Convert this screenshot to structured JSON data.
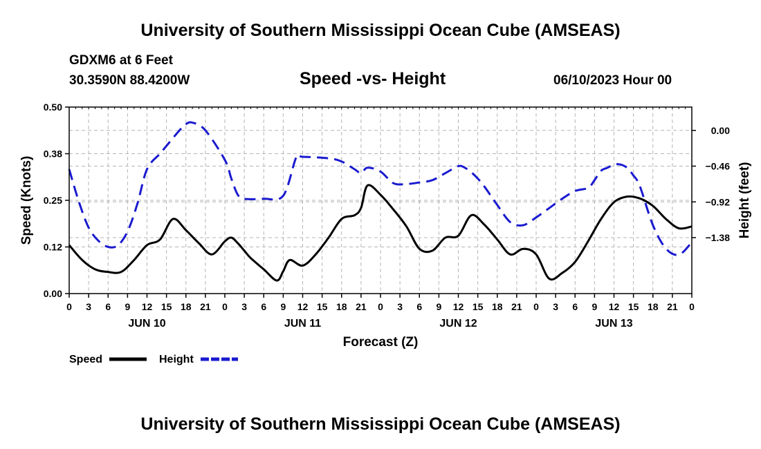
{
  "header": {
    "main_title": "University of Southern Mississippi Ocean Cube (AMSEAS)",
    "station": "GDXM6 at 6 Feet",
    "coords": "30.3590N  88.4200W",
    "chart_title": "Speed -vs- Height",
    "datetime": "06/10/2023 Hour 00"
  },
  "footer": {
    "title": "University of Southern Mississippi Ocean Cube (AMSEAS)"
  },
  "colors": {
    "speed": "#000000",
    "height": "#1a1ad0",
    "grid": "#b4b4b4"
  },
  "chart_data": {
    "type": "line",
    "title": "Speed -vs- Height",
    "xlabel": "Forecast (Z)",
    "ylabel": "Speed (Knots)",
    "y2label": "Height (feet)",
    "xlim": [
      0,
      96
    ],
    "ylim": [
      0,
      0.5
    ],
    "y2lim": [
      -2.1,
      0.3
    ],
    "x_tick_labels": [
      "0",
      "3",
      "6",
      "9",
      "12",
      "15",
      "18",
      "21",
      "0",
      "3",
      "6",
      "9",
      "12",
      "15",
      "18",
      "21",
      "0",
      "3",
      "6",
      "9",
      "12",
      "15",
      "18",
      "21",
      "0",
      "3",
      "6",
      "9",
      "12",
      "15",
      "18",
      "21",
      "0"
    ],
    "day_labels": [
      {
        "label": "JUN 10",
        "x": 12
      },
      {
        "label": "JUN 11",
        "x": 36
      },
      {
        "label": "JUN 12",
        "x": 60
      },
      {
        "label": "JUN 13",
        "x": 84
      }
    ],
    "y_ticks": [
      {
        "value": 0.0,
        "label": "0.00"
      },
      {
        "value": 0.125,
        "label": "0.12"
      },
      {
        "value": 0.25,
        "label": "0.25"
      },
      {
        "value": 0.375,
        "label": "0.38"
      },
      {
        "value": 0.5,
        "label": "0.50"
      }
    ],
    "y2_ticks": [
      {
        "value": 0.0,
        "label": "0.00"
      },
      {
        "value": -0.46,
        "label": "−0.46"
      },
      {
        "value": -0.92,
        "label": "−0.92"
      },
      {
        "value": -1.38,
        "label": "−1.38"
      }
    ],
    "legend": [
      {
        "label": "Speed",
        "series": "speed"
      },
      {
        "label": "Height",
        "series": "height"
      }
    ],
    "series": [
      {
        "name": "Speed",
        "axis": "left",
        "style": "solid",
        "x": [
          0,
          2,
          4,
          6,
          8,
          10,
          12,
          14,
          16,
          18,
          20,
          22,
          24,
          25,
          26,
          27,
          28,
          30,
          32,
          33,
          34,
          36,
          38,
          40,
          42,
          44,
          45,
          46,
          48,
          50,
          52,
          54,
          56,
          58,
          60,
          62,
          64,
          66,
          68,
          70,
          72,
          74,
          76,
          78,
          80,
          82,
          84,
          86,
          88,
          90,
          92,
          94,
          96
        ],
        "values": [
          0.13,
          0.09,
          0.065,
          0.058,
          0.058,
          0.09,
          0.13,
          0.145,
          0.2,
          0.17,
          0.135,
          0.105,
          0.14,
          0.15,
          0.135,
          0.115,
          0.095,
          0.065,
          0.035,
          0.06,
          0.09,
          0.075,
          0.105,
          0.15,
          0.2,
          0.21,
          0.23,
          0.29,
          0.265,
          0.225,
          0.18,
          0.12,
          0.115,
          0.15,
          0.155,
          0.21,
          0.185,
          0.145,
          0.105,
          0.12,
          0.105,
          0.04,
          0.055,
          0.085,
          0.14,
          0.2,
          0.245,
          0.26,
          0.255,
          0.235,
          0.2,
          0.175,
          0.18
        ]
      },
      {
        "name": "Height",
        "axis": "right",
        "style": "dashed",
        "x": [
          0,
          1.5,
          3,
          4.5,
          6,
          7.5,
          9,
          10.5,
          12,
          14,
          15,
          17,
          18,
          19,
          21,
          24,
          25,
          26,
          27,
          30,
          33,
          35,
          36,
          40,
          42,
          44,
          45,
          46,
          48,
          50,
          52,
          54,
          56,
          58,
          60,
          61,
          62,
          63,
          64,
          66,
          68,
          70,
          72,
          74,
          76,
          78,
          80,
          81,
          82,
          83,
          84,
          85,
          86,
          87,
          88,
          90,
          92,
          94,
          96
        ],
        "values": [
          -0.5,
          -0.92,
          -1.25,
          -1.42,
          -1.5,
          -1.48,
          -1.3,
          -0.95,
          -0.5,
          -0.3,
          -0.2,
          0.0,
          0.08,
          0.1,
          0.0,
          -0.38,
          -0.62,
          -0.83,
          -0.88,
          -0.88,
          -0.84,
          -0.35,
          -0.34,
          -0.36,
          -0.4,
          -0.5,
          -0.55,
          -0.48,
          -0.53,
          -0.68,
          -0.69,
          -0.67,
          -0.64,
          -0.55,
          -0.46,
          -0.48,
          -0.54,
          -0.62,
          -0.72,
          -0.96,
          -1.18,
          -1.22,
          -1.12,
          -1.0,
          -0.88,
          -0.78,
          -0.74,
          -0.64,
          -0.52,
          -0.48,
          -0.44,
          -0.44,
          -0.48,
          -0.58,
          -0.72,
          -1.22,
          -1.52,
          -1.6,
          -1.44
        ]
      }
    ]
  }
}
